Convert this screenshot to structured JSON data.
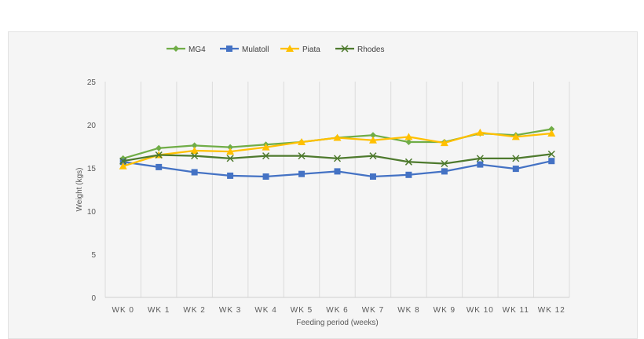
{
  "chart_data": {
    "type": "line",
    "title": "",
    "xlabel": "Feeding period (weeks)",
    "ylabel": "Weight (kgs)",
    "ylim": [
      0,
      25
    ],
    "yticks": [
      0,
      5,
      10,
      15,
      20,
      25
    ],
    "grid": "vertical",
    "legend": "top",
    "categories": [
      "WK 0",
      "WK 1",
      "WK 2",
      "WK 3",
      "WK 4",
      "WK 5",
      "WK 6",
      "WK 7",
      "WK 8",
      "WK 9",
      "WK 10",
      "WK 11",
      "WK 12"
    ],
    "series": [
      {
        "name": "MG4",
        "color": "#70ad47",
        "marker": "diamond",
        "values": [
          16.1,
          17.3,
          17.6,
          17.4,
          17.7,
          18.0,
          18.5,
          18.8,
          18.0,
          18.0,
          19.0,
          18.8,
          19.5
        ]
      },
      {
        "name": "Mulatoll",
        "color": "#4472c4",
        "marker": "square",
        "values": [
          15.7,
          15.1,
          14.5,
          14.1,
          14.0,
          14.3,
          14.6,
          14.0,
          14.2,
          14.6,
          15.4,
          14.9,
          15.8
        ]
      },
      {
        "name": "Piata",
        "color": "#ffc000",
        "marker": "triangle",
        "values": [
          15.2,
          16.5,
          17.0,
          16.9,
          17.4,
          18.0,
          18.5,
          18.2,
          18.6,
          17.9,
          19.1,
          18.6,
          19.0
        ]
      },
      {
        "name": "Rhodes",
        "color": "#4e7a2e",
        "marker": "x",
        "values": [
          15.8,
          16.5,
          16.4,
          16.1,
          16.4,
          16.4,
          16.1,
          16.4,
          15.7,
          15.5,
          16.1,
          16.1,
          16.6
        ]
      }
    ]
  }
}
